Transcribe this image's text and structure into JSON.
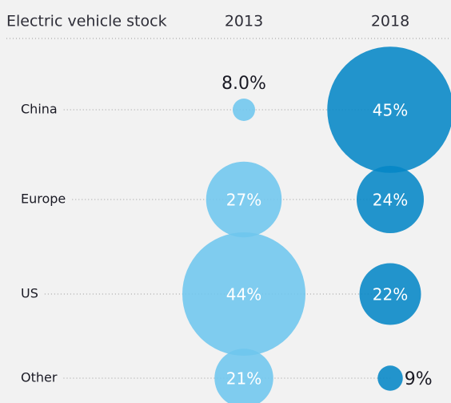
{
  "chart_data": {
    "type": "bubble",
    "title": "Electric vehicle stock",
    "categories": [
      "China",
      "Europe",
      "US",
      "Other"
    ],
    "series": [
      {
        "name": "2013",
        "color": "#6ec6ee",
        "values": [
          8.0,
          27,
          44,
          21
        ],
        "value_labels": [
          "8.0%",
          "27%",
          "44%",
          "21%"
        ]
      },
      {
        "name": "2018",
        "color": "#0586c6",
        "values": [
          45,
          24,
          22,
          9
        ],
        "value_labels": [
          "45%",
          "24%",
          "22%",
          "9%"
        ]
      }
    ]
  }
}
